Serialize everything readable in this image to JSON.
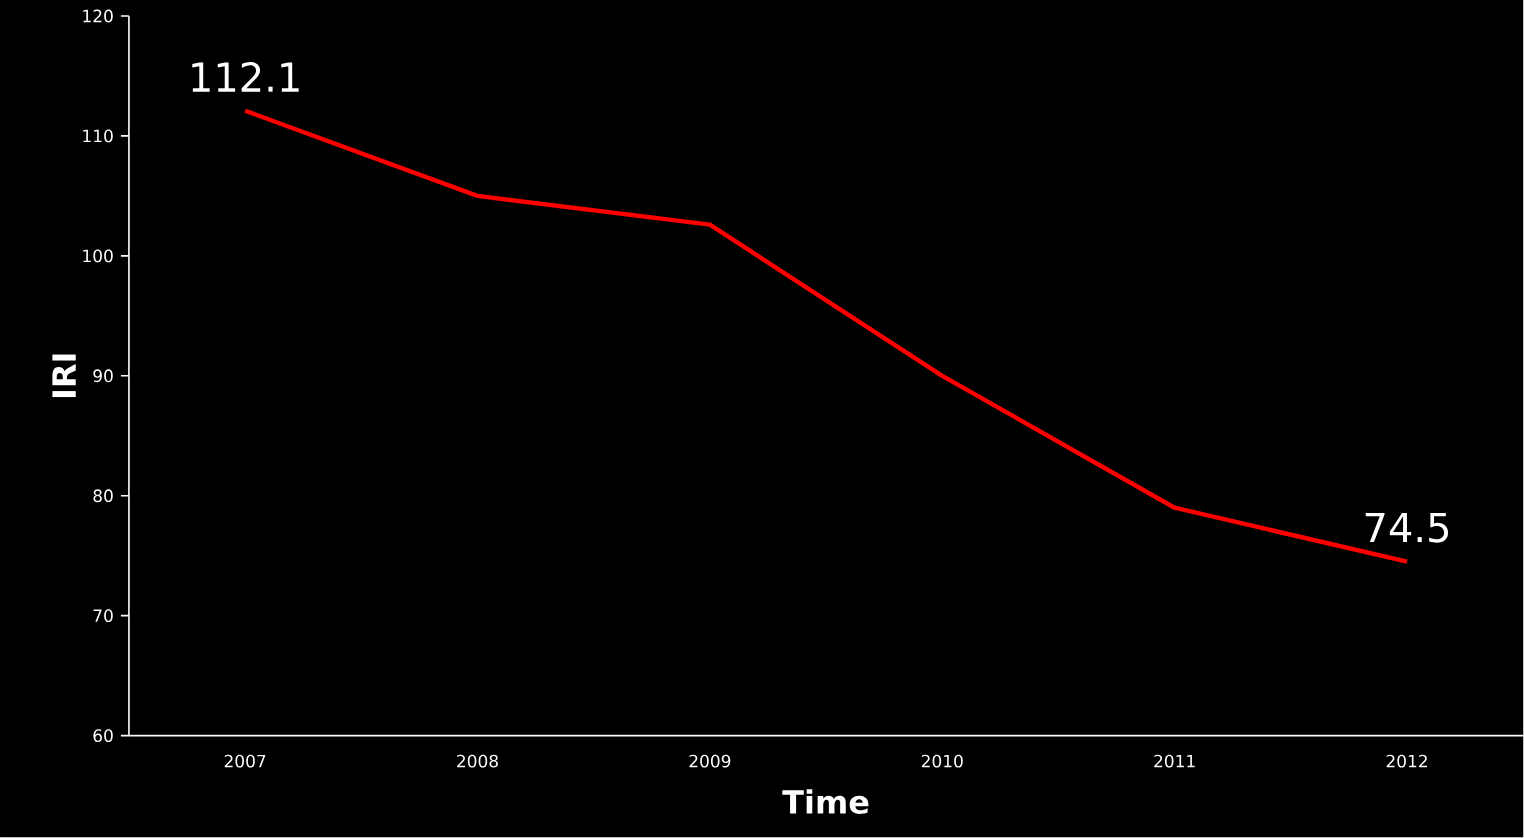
{
  "chart_data": {
    "type": "line",
    "xlabel": "Time",
    "ylabel": "IRI",
    "categories": [
      "2007",
      "2008",
      "2009",
      "2010",
      "2011",
      "2012"
    ],
    "values": [
      112.1,
      105,
      102.6,
      90,
      79,
      74.5
    ],
    "value_labels": [
      "112.1",
      null,
      null,
      null,
      null,
      "74.5"
    ],
    "color": "#ff0000",
    "ylim": [
      60,
      120
    ],
    "yticks": [
      60,
      70,
      80,
      90,
      100,
      110,
      120
    ]
  }
}
